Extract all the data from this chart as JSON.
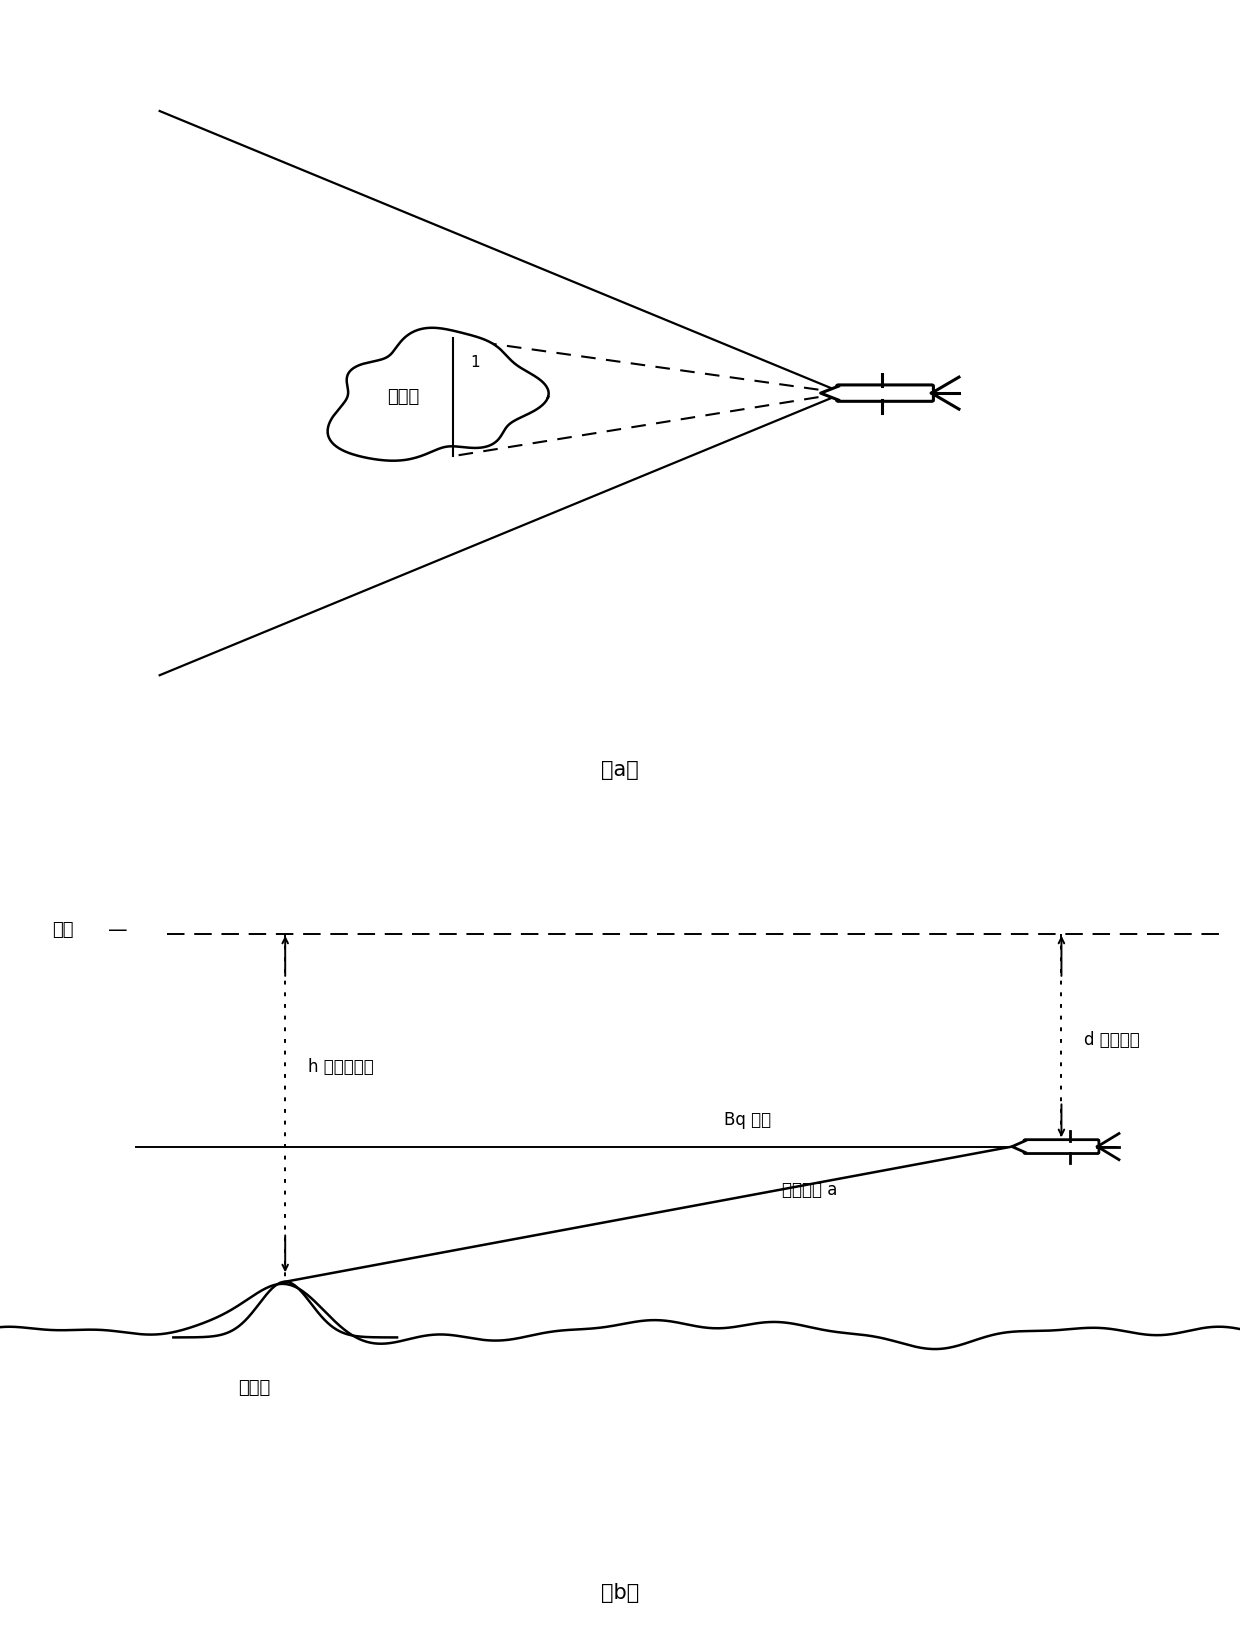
{
  "fig_width": 12.4,
  "fig_height": 16.38,
  "bg_color": "#ffffff",
  "panel_a_label": "（a）",
  "panel_b_label": "（b）",
  "obstacle_label_a": "障碍物",
  "obstacle_label_b": "障碍物",
  "water_surface_label": "水面",
  "water_dash": "—",
  "depth_h_label": "h 障碍物深度",
  "depth_d_label": "d 航行深度",
  "range_label": "Bq 量程",
  "angle_label": "垂直开角 a",
  "num_label_1": "1"
}
